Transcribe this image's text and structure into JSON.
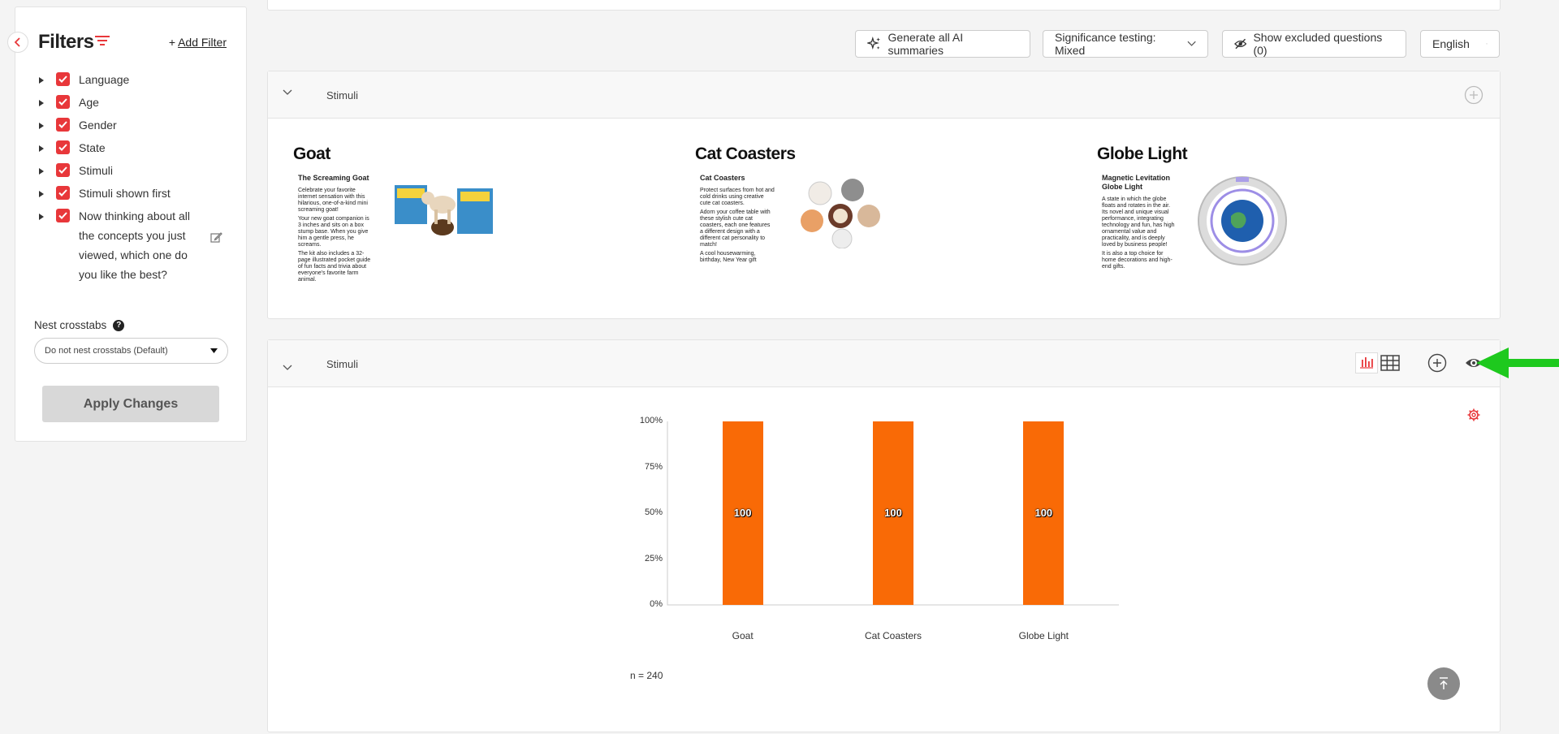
{
  "sidebar": {
    "title": "Filters",
    "add_filter_label": "Add Filter",
    "add_filter_plus": "+",
    "filters": [
      {
        "label": "Language"
      },
      {
        "label": "Age"
      },
      {
        "label": "Gender"
      },
      {
        "label": "State"
      },
      {
        "label": "Stimuli"
      },
      {
        "label": "Stimuli shown first"
      },
      {
        "label": "Now thinking about all the concepts you just viewed, which one do you like the best?"
      }
    ],
    "nest_crosstabs_label": "Nest crosstabs",
    "nest_help": "?",
    "nest_select_value": "Do not nest crosstabs (Default)",
    "apply_button": "Apply Changes"
  },
  "toolbar": {
    "generate_ai": "Generate all AI summaries",
    "significance": "Significance testing: Mixed",
    "show_excluded": "Show excluded questions (0)",
    "language": "English"
  },
  "stimuli_card": {
    "title": "Stimuli",
    "items": [
      {
        "name": "Goat",
        "doc_title": "The Screaming Goat",
        "doc_lines": [
          "Celebrate your favorite internet sensation with this hilarious, one-of-a-kind mini screaming goat!",
          "Your new goat companion is 3 inches and sits on a box stump base. When you give him a gentle press, he screams.",
          "The kit also includes a 32-page illustrated pocket guide of fun facts and trivia about everyone's favorite farm animal."
        ]
      },
      {
        "name": "Cat Coasters",
        "doc_title": "Cat Coasters",
        "doc_lines": [
          "Protect surfaces from hot and cold drinks using creative cute cat coasters.",
          "Adorn your coffee table with these stylish cute cat coasters, each one features a different design with a different cat personality to match!",
          "A cool housewarming, birthday, New Year gift"
        ]
      },
      {
        "name": "Globe Light",
        "doc_title": "Magnetic Levitation Globe Light",
        "doc_lines": [
          "A state in which the globe floats and rotates in the air. Its novel and unique visual performance, integrating technology and fun, has high ornamental value and practicality, and is deeply loved by business people!",
          "It is also a top choice for home decorations and high-end gifts."
        ]
      }
    ]
  },
  "chart_card": {
    "title": "Stimuli",
    "n_label": "n = 240"
  },
  "chart_data": {
    "type": "bar",
    "categories": [
      "Goat",
      "Cat Coasters",
      "Globe Light"
    ],
    "values": [
      100,
      100,
      100
    ],
    "data_labels": [
      "100",
      "100",
      "100"
    ],
    "yticks": [
      "0%",
      "25%",
      "50%",
      "75%",
      "100%"
    ],
    "ylim": [
      0,
      100
    ],
    "bar_color": "#f96a06",
    "xlabel": "",
    "ylabel": ""
  },
  "colors": {
    "accent": "#e8373a",
    "bar": "#f96a06",
    "annotation_arrow": "#1ec91e"
  }
}
